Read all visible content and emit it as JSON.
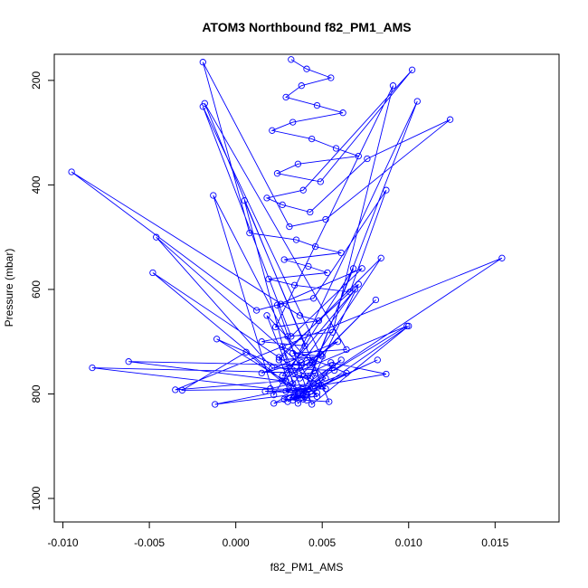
{
  "chart_data": {
    "type": "line",
    "title": "ATOM3 Northbound f82_PM1_AMS",
    "xlabel": "f82_PM1_AMS",
    "ylabel": "Pressure (mbar)",
    "xlim": [
      -0.0105,
      0.0187
    ],
    "ylim": [
      1045,
      150
    ],
    "y_reversed": true,
    "x_ticks": [
      -0.01,
      -0.005,
      0.0,
      0.005,
      0.01,
      0.015
    ],
    "x_tick_labels": [
      "-0.010",
      "-0.005",
      "0.000",
      "0.005",
      "0.010",
      "0.015"
    ],
    "y_ticks": [
      200,
      400,
      600,
      800,
      1000
    ],
    "y_tick_labels": [
      "200",
      "400",
      "600",
      "800",
      "1000"
    ],
    "grid": false,
    "legend": "none",
    "marker": "open-circle",
    "series_color": "#0000ff",
    "series": [
      {
        "x": [
          0.0032,
          0.0041,
          0.0055,
          0.0038,
          0.0029,
          0.0047,
          0.0062,
          0.0033,
          0.0021,
          0.0044,
          0.0058,
          0.0071,
          0.0036,
          0.0024,
          0.0049,
          0.0102,
          0.0039,
          0.0018,
          0.0027,
          0.0043,
          0.0076,
          0.0124,
          0.0052,
          0.0031,
          -0.0019,
          0.0008,
          0.0035,
          0.0046,
          0.0061,
          0.0028,
          0.0042,
          0.0053,
          0.0019,
          0.0034,
          0.0066,
          0.0087,
          0.0045,
          0.0026,
          0.0012,
          -0.0095,
          0.0037,
          0.0048,
          0.0023,
          0.0091,
          0.0056,
          0.003,
          0.0015,
          0.004,
          -0.0018,
          0.0064,
          0.0033,
          0.005,
          0.0025,
          0.0084,
          0.0044,
          0.0038,
          -0.0046,
          0.0021,
          0.0057,
          0.0099,
          0.0034,
          0.0069,
          0.0027,
          0.0043,
          0.0105,
          0.0029,
          -0.0035,
          0.0154,
          0.0045,
          0.0031,
          -0.0048,
          0.0052,
          0.0017,
          0.0039,
          0.0068,
          0.0022,
          -0.0013,
          0.0047,
          0.0035,
          0.0061,
          0.0028,
          0.0041,
          0.0054,
          0.0005,
          0.0036,
          0.01,
          0.0044,
          0.0024,
          0.0073,
          0.0032,
          -0.0019,
          0.0049,
          0.0038,
          0.0015,
          0.0059,
          0.0027,
          -0.0062,
          0.0043,
          0.0081,
          0.0033,
          0.002,
          -0.0083,
          0.0046,
          0.0037,
          0.0055,
          0.0087,
          0.0029,
          0.0041,
          -0.0011,
          0.005,
          0.0034,
          0.0025,
          0.0071,
          0.0039,
          0.0006,
          -0.0031,
          0.0045,
          0.0082,
          0.003,
          0.0052,
          0.0018,
          0.0036,
          -0.0012,
          0.0048,
          0.0064,
          0.0027,
          0.004,
          0.0033,
          0.0056,
          0.0044,
          0.0022,
          0.0038,
          0.0031,
          0.0047
        ],
        "y": [
          160,
          178,
          195,
          210,
          232,
          248,
          262,
          280,
          296,
          312,
          330,
          345,
          360,
          378,
          394,
          180,
          410,
          425,
          438,
          452,
          350,
          275,
          466,
          480,
          165,
          492,
          505,
          518,
          530,
          543,
          556,
          568,
          580,
          592,
          605,
          410,
          617,
          628,
          640,
          375,
          650,
          660,
          672,
          210,
          682,
          690,
          700,
          708,
          244,
          715,
          722,
          728,
          735,
          540,
          740,
          745,
          500,
          750,
          755,
          670,
          760,
          600,
          765,
          770,
          240,
          775,
          792,
          540,
          780,
          785,
          568,
          790,
          795,
          798,
          560,
          802,
          420,
          805,
          808,
          735,
          810,
          812,
          815,
          430,
          818,
          670,
          820,
          630,
          560,
          690,
          250,
          725,
          740,
          760,
          700,
          775,
          738,
          745,
          620,
          780,
          790,
          750,
          760,
          770,
          740,
          762,
          795,
          800,
          695,
          785,
          805,
          730,
          590,
          810,
          720,
          793,
          790,
          735,
          815,
          770,
          650,
          800,
          820,
          780,
          760,
          710,
          805,
          812,
          745,
          800,
          818,
          790,
          808,
          798
        ]
      }
    ]
  }
}
